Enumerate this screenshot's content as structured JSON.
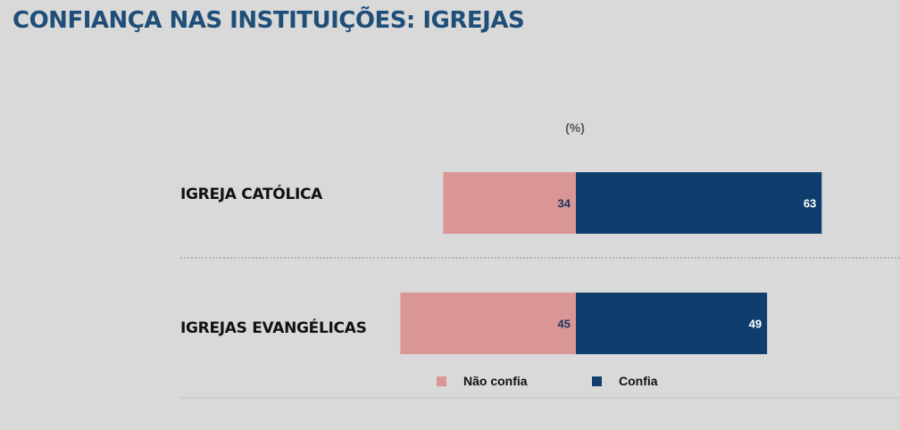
{
  "page": {
    "title": "CONFIANÇA NAS INSTITUIÇÕES: IGREJAS"
  },
  "chart_data": {
    "type": "bar",
    "orientation": "horizontal",
    "stacked": "diverging",
    "unit_label": "(%)",
    "categories": [
      "IGREJA CATÓLICA",
      "IGREJAS EVANGÉLICAS"
    ],
    "series": [
      {
        "name": "Não confia",
        "values": [
          34,
          45
        ],
        "color": "#d99694",
        "label_color": "#1f3864"
      },
      {
        "name": "Confia",
        "values": [
          63,
          49
        ],
        "color": "#0f3e6e",
        "label_color": "#ffffff"
      }
    ],
    "legend_position": "bottom",
    "grid": false
  }
}
